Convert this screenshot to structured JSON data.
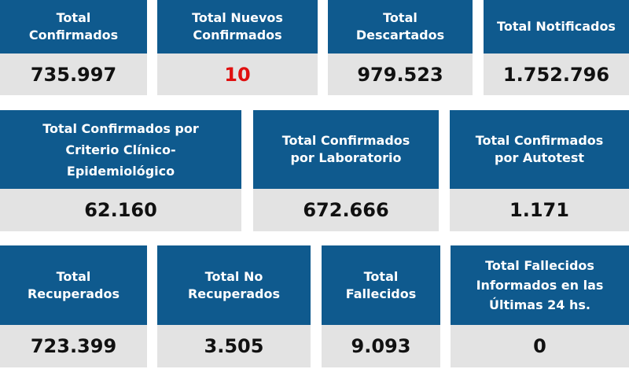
{
  "colors": {
    "header": "#0f5a8e",
    "value_bg": "#e3e3e3",
    "highlight": "#e01010"
  },
  "row1": [
    {
      "title": [
        "Total",
        "Confirmados"
      ],
      "value": "735.997"
    },
    {
      "title": [
        "Total Nuevos",
        "Confirmados"
      ],
      "value": "10"
    },
    {
      "title": [
        "Total",
        "Descartados"
      ],
      "value": "979.523"
    },
    {
      "title": [
        "Total Notificados"
      ],
      "value": "1.752.796"
    }
  ],
  "row2": [
    {
      "title": [
        "Total Confirmados por",
        "Criterio Clínico-",
        "Epidemiológico"
      ],
      "value": "62.160"
    },
    {
      "title": [
        "Total Confirmados",
        "por Laboratorio"
      ],
      "value": "672.666"
    },
    {
      "title": [
        "Total Confirmados",
        "por Autotest"
      ],
      "value": "1.171"
    }
  ],
  "row3": [
    {
      "title": [
        "Total",
        "Recuperados"
      ],
      "value": "723.399"
    },
    {
      "title": [
        "Total No",
        "Recuperados"
      ],
      "value": "3.505"
    },
    {
      "title": [
        "Total",
        "Fallecidos"
      ],
      "value": "9.093"
    },
    {
      "title": [
        "Total Fallecidos",
        "Informados en las",
        "Últimas 24 hs."
      ],
      "value": "0"
    }
  ]
}
